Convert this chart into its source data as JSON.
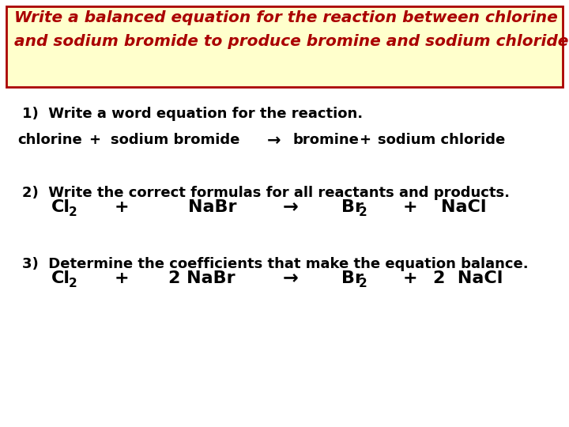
{
  "background_color": "#FFFFFF",
  "header_bg": "#FFFFCC",
  "header_border": "#AA0000",
  "header_text_color": "#AA0000",
  "header_line1": "Write a balanced equation for the reaction between chlorine",
  "header_line2": "and sodium bromide to produce bromine and sodium chloride.",
  "body_text_color": "#000000",
  "step1_label": "1)  Write a word equation for the reaction.",
  "step2_label": "2)  Write the correct formulas for all reactants and products.",
  "step3_label": "3)  Determine the coefficients that make the equation balance.",
  "figsize": [
    7.2,
    5.4
  ],
  "dpi": 100
}
